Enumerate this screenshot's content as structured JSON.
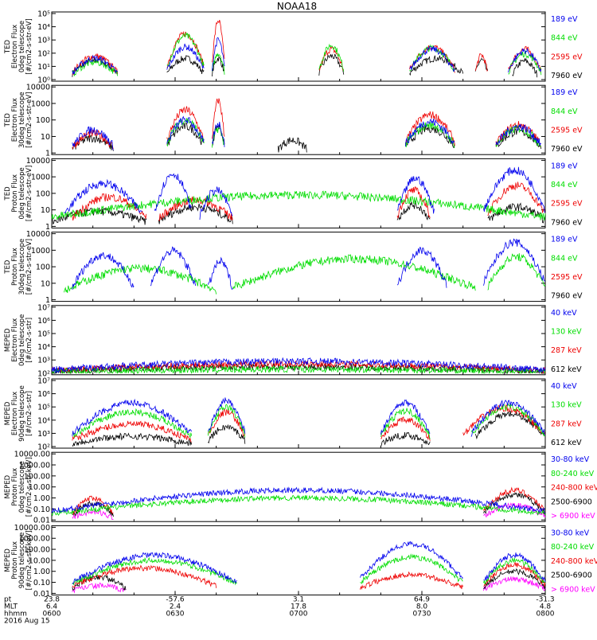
{
  "title": "NOAA18",
  "colors": {
    "black": "#000000",
    "red": "#ee0000",
    "green": "#00dd00",
    "blue": "#0000ee",
    "magenta": "#ff00ff"
  },
  "footer": {
    "row_labels": [
      "pt",
      "MLT",
      "hhmm",
      "2016 Aug 15"
    ],
    "columns": [
      {
        "pt": "23.8",
        "mlt": "6.4",
        "hhmm": "0600"
      },
      {
        "pt": "-57.6",
        "mlt": "2.4",
        "hhmm": "0630"
      },
      {
        "pt": "3.1",
        "mlt": "17.8",
        "hhmm": "0700"
      },
      {
        "pt": "64.9",
        "mlt": "8.0",
        "hhmm": "0730"
      },
      {
        "pt": "-31.3",
        "mlt": "4.8",
        "hhmm": "0800"
      }
    ]
  },
  "chart_data": [
    {
      "type": "line",
      "ylabel": "TED\nElectron Flux\n0deg telescope\n[#/cm2-s-str-eV]",
      "yscale": "log",
      "ylim": [
        1,
        100000
      ],
      "ticks": [
        "10⁰",
        "10¹",
        "10²",
        "10³",
        "10⁴",
        "10⁵"
      ],
      "xlim": [
        0,
        120
      ],
      "series": [
        {
          "name": "7960 eV",
          "color": "black",
          "segments": [
            [
              5,
              16,
              30
            ],
            [
              28,
              37,
              40
            ],
            [
              39,
              42,
              40
            ],
            [
              65,
              71,
              60
            ],
            [
              87,
              100,
              40
            ],
            [
              103,
              106,
              30
            ],
            [
              112,
              118,
              25
            ]
          ]
        },
        {
          "name": "2595 eV",
          "color": "red",
          "segments": [
            [
              5,
              16,
              60
            ],
            [
              28,
              37,
              3000
            ],
            [
              39,
              42,
              30000
            ],
            [
              65,
              71,
              200
            ],
            [
              87,
              98,
              300
            ],
            [
              103,
              106,
              70
            ],
            [
              111,
              119,
              200
            ]
          ]
        },
        {
          "name": "844 eV",
          "color": "green",
          "segments": [
            [
              5,
              16,
              20
            ],
            [
              28,
              37,
              2000
            ],
            [
              39,
              42,
              100
            ],
            [
              65,
              71,
              400
            ],
            [
              87,
              98,
              250
            ],
            [
              111,
              119,
              90
            ]
          ]
        },
        {
          "name": "189 eV",
          "color": "blue",
          "segments": [
            [
              5,
              16,
              40
            ],
            [
              28,
              37,
              300
            ],
            [
              39,
              42,
              1000
            ],
            [
              87,
              98,
              200
            ],
            [
              111,
              119,
              150
            ]
          ]
        }
      ]
    },
    {
      "type": "line",
      "ylabel": "TED\nElectron Flux\n30deg telescope\n[#/cm2-s-str-eV]",
      "yscale": "log",
      "ylim": [
        1,
        10000
      ],
      "ticks": [
        "1",
        "10",
        "100",
        "1000",
        "10000"
      ],
      "xlim": [
        0,
        120
      ],
      "series": [
        {
          "name": "7960 eV",
          "color": "black",
          "segments": [
            [
              5,
              15,
              8
            ],
            [
              28,
              37,
              40
            ],
            [
              39,
              42,
              40
            ],
            [
              55,
              62,
              6
            ],
            [
              86,
              98,
              30
            ],
            [
              108,
              119,
              20
            ]
          ]
        },
        {
          "name": "2595 eV",
          "color": "red",
          "segments": [
            [
              5,
              15,
              15
            ],
            [
              28,
              37,
              400
            ],
            [
              39,
              42,
              1500
            ],
            [
              86,
              98,
              200
            ],
            [
              108,
              119,
              50
            ]
          ]
        },
        {
          "name": "844 eV",
          "color": "green",
          "segments": [
            [
              28,
              37,
              100
            ],
            [
              39,
              42,
              30
            ],
            [
              86,
              98,
              50
            ],
            [
              108,
              119,
              30
            ]
          ]
        },
        {
          "name": "189 eV",
          "color": "blue",
          "segments": [
            [
              5,
              15,
              25
            ],
            [
              28,
              37,
              100
            ],
            [
              39,
              42,
              60
            ],
            [
              86,
              98,
              80
            ],
            [
              108,
              119,
              40
            ]
          ]
        }
      ]
    },
    {
      "type": "line",
      "ylabel": "TED\nProton Flux\n0deg telescope\n[#/cm2-s-str-eV]",
      "yscale": "log",
      "ylim": [
        1,
        10000
      ],
      "ticks": [
        "1",
        "10",
        "100",
        "1000",
        "10000"
      ],
      "xlim": [
        0,
        120
      ],
      "series": [
        {
          "name": "7960 eV",
          "color": "black",
          "segments": [
            [
              0,
              23,
              8
            ],
            [
              26,
              44,
              15
            ],
            [
              84,
              92,
              20
            ],
            [
              106,
              120,
              15
            ]
          ]
        },
        {
          "name": "2595 eV",
          "color": "red",
          "segments": [
            [
              5,
              23,
              60
            ],
            [
              26,
              44,
              40
            ],
            [
              84,
              92,
              150
            ],
            [
              106,
              120,
              300
            ]
          ]
        },
        {
          "name": "844 eV",
          "color": "green",
          "segments": [
            [
              0,
              120,
              80
            ]
          ]
        },
        {
          "name": "189 eV",
          "color": "blue",
          "segments": [
            [
              3,
              22,
              400
            ],
            [
              25,
              34,
              1500
            ],
            [
              36,
              44,
              150
            ],
            [
              84,
              93,
              800
            ],
            [
              105,
              120,
              2500
            ]
          ]
        }
      ]
    },
    {
      "type": "line",
      "ylabel": "TED\nProton Flux\n30deg telescope\n[#/cm2-s-str-eV]",
      "yscale": "log",
      "ylim": [
        1,
        10000
      ],
      "ticks": [
        "1",
        "10",
        "100",
        "1000",
        "10000"
      ],
      "xlim": [
        0,
        120
      ],
      "series": [
        {
          "name": "7960 eV",
          "color": "black",
          "segments": []
        },
        {
          "name": "2595 eV",
          "color": "red",
          "segments": []
        },
        {
          "name": "844 eV",
          "color": "green",
          "segments": [
            [
              3,
              40,
              80
            ],
            [
              44,
              103,
              300
            ],
            [
              106,
              120,
              400
            ]
          ]
        },
        {
          "name": "189 eV",
          "color": "blue",
          "segments": [
            [
              5,
              20,
              500
            ],
            [
              24,
              35,
              900
            ],
            [
              38,
              44,
              200
            ],
            [
              84,
              96,
              1000
            ],
            [
              105,
              120,
              3000
            ]
          ]
        }
      ]
    },
    {
      "type": "line",
      "ylabel": "MEPED\nElectron Flux\n0deg telescope\n[#/cm2-s-str]",
      "yscale": "log",
      "ylim": [
        100,
        10000000
      ],
      "ticks": [
        "10²",
        "10³",
        "10⁴",
        "10⁵",
        "10⁶",
        "10⁷"
      ],
      "xlim": [
        0,
        120
      ],
      "series": [
        {
          "name": "612 keV",
          "color": "black",
          "segments": [
            [
              0,
              120,
              300
            ]
          ]
        },
        {
          "name": "287 keV",
          "color": "red",
          "segments": [
            [
              0,
              120,
              500
            ]
          ]
        },
        {
          "name": "130 keV",
          "color": "green",
          "segments": [
            [
              0,
              120,
              200
            ]
          ]
        },
        {
          "name": "40 keV",
          "color": "blue",
          "segments": [
            [
              0,
              120,
              800
            ]
          ]
        }
      ]
    },
    {
      "type": "line",
      "ylabel": "MEPED\nElectron Flux\n90deg telescope\n[#/cm2-s-str]",
      "yscale": "log",
      "ylim": [
        100,
        10000000
      ],
      "ticks": [
        "10²",
        "10³",
        "10⁴",
        "10⁵",
        "10⁶",
        "10⁷"
      ],
      "xlim": [
        0,
        120
      ],
      "series": [
        {
          "name": "612 keV",
          "color": "black",
          "segments": [
            [
              5,
              34,
              600
            ],
            [
              38,
              47,
              3000
            ],
            [
              80,
              92,
              700
            ],
            [
              103,
              120,
              30000
            ]
          ]
        },
        {
          "name": "287 keV",
          "color": "red",
          "segments": [
            [
              5,
              34,
              5000
            ],
            [
              38,
              47,
              40000
            ],
            [
              80,
              92,
              10000
            ],
            [
              100,
              120,
              80000
            ]
          ]
        },
        {
          "name": "130 keV",
          "color": "green",
          "segments": [
            [
              5,
              34,
              40000
            ],
            [
              38,
              47,
              100000
            ],
            [
              80,
              92,
              50000
            ],
            [
              102,
              120,
              100000
            ]
          ]
        },
        {
          "name": "40 keV",
          "color": "blue",
          "segments": [
            [
              5,
              34,
              200000
            ],
            [
              38,
              47,
              300000
            ],
            [
              80,
              92,
              200000
            ],
            [
              102,
              120,
              200000
            ]
          ]
        }
      ]
    },
    {
      "type": "line",
      "ylabel": "MEPED\nProton Flux\n0deg telescope\n[#/cm2-s-str-keV]",
      "yscale": "log",
      "ylim": [
        0.01,
        10000
      ],
      "ticks": [
        "0.01",
        "0.10",
        "1.00",
        "10.00",
        "100.00",
        "1000.00",
        "10000.00"
      ],
      "xlim": [
        0,
        120
      ],
      "series": [
        {
          "name": "> 6900 keV",
          "color": "magenta",
          "segments": [
            [
              5,
              15,
              0.05
            ],
            [
              105,
              120,
              0.2
            ]
          ]
        },
        {
          "name": "2500-6900",
          "color": "black",
          "segments": [
            [
              5,
              15,
              0.3
            ],
            [
              105,
              120,
              2
            ]
          ]
        },
        {
          "name": "240-800 keV",
          "color": "red",
          "segments": [
            [
              5,
              15,
              1
            ],
            [
              105,
              120,
              5
            ]
          ]
        },
        {
          "name": "80-240 keV",
          "color": "green",
          "segments": [
            [
              0,
              120,
              1
            ]
          ]
        },
        {
          "name": "30-80 keV",
          "color": "blue",
          "segments": [
            [
              0,
              120,
              5
            ]
          ]
        }
      ]
    },
    {
      "type": "line",
      "ylabel": "MEPED\nProton Flux\n90deg telescope\n[#/cm2-s-str-keV]",
      "yscale": "log",
      "ylim": [
        0.01,
        10000
      ],
      "ticks": [
        "0.01",
        "0.10",
        "1.00",
        "10.00",
        "100.00",
        "1000.00",
        "10000.00"
      ],
      "xlim": [
        0,
        120
      ],
      "series": [
        {
          "name": "> 6900 keV",
          "color": "magenta",
          "segments": [
            [
              5,
              18,
              0.05
            ],
            [
              105,
              120,
              0.2
            ]
          ]
        },
        {
          "name": "2500-6900",
          "color": "black",
          "segments": [
            [
              5,
              18,
              0.3
            ],
            [
              105,
              120,
              1
            ]
          ]
        },
        {
          "name": "240-800 keV",
          "color": "red",
          "segments": [
            [
              5,
              40,
              2
            ],
            [
              75,
              100,
              0.5
            ],
            [
              105,
              120,
              4
            ]
          ]
        },
        {
          "name": "80-240 keV",
          "color": "green",
          "segments": [
            [
              5,
              45,
              10
            ],
            [
              75,
              100,
              20
            ],
            [
              105,
              120,
              10
            ]
          ]
        },
        {
          "name": "30-80 keV",
          "color": "blue",
          "segments": [
            [
              5,
              45,
              30
            ],
            [
              75,
              100,
              300
            ],
            [
              105,
              120,
              30
            ]
          ]
        }
      ]
    }
  ]
}
